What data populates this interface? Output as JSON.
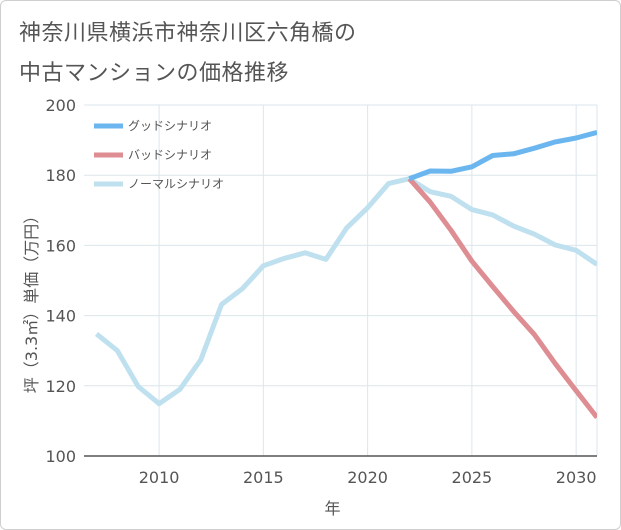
{
  "title_lines": [
    "神奈川県横浜市神奈川区六角橋の",
    "中古マンションの価格推移"
  ],
  "chart_data": {
    "type": "line",
    "title": "神奈川県横浜市神奈川区六角橋の中古マンションの価格推移",
    "xlabel": "年",
    "ylabel": "坪（3.3㎡）単価（万円）",
    "xlim": [
      2006.4,
      2031
    ],
    "ylim": [
      100,
      200
    ],
    "x_ticks": [
      2010,
      2015,
      2020,
      2025,
      2030
    ],
    "y_ticks": [
      100,
      120,
      140,
      160,
      180,
      200
    ],
    "grid": true,
    "legend_position": "top-left",
    "series": [
      {
        "name": "グッドシナリオ",
        "color": "#6bb6ef",
        "x": [
          2022,
          2023,
          2024,
          2025,
          2026,
          2027,
          2028,
          2029,
          2030,
          2031
        ],
        "values": [
          179,
          181.2,
          181.1,
          182.4,
          185.6,
          186.1,
          187.7,
          189.5,
          190.6,
          192.2
        ]
      },
      {
        "name": "バッドシナリオ",
        "color": "#de8d93",
        "x": [
          2022,
          2023,
          2024,
          2025,
          2026,
          2027,
          2028,
          2029,
          2030,
          2031
        ],
        "values": [
          179,
          172.3,
          164.3,
          155.5,
          148.3,
          141.2,
          134.6,
          126.3,
          118.6,
          111
        ]
      },
      {
        "name": "ノーマルシナリオ",
        "color": "#bfe0ee",
        "x": [
          2007,
          2008,
          2009,
          2010,
          2011,
          2012,
          2013,
          2014,
          2015,
          2016,
          2017,
          2018,
          2019,
          2020,
          2021,
          2022,
          2023,
          2024,
          2025,
          2026,
          2027,
          2028,
          2029,
          2030,
          2031
        ],
        "values": [
          134.8,
          130,
          119.8,
          114.9,
          119,
          127.4,
          143.2,
          147.7,
          154.2,
          156.3,
          157.9,
          156,
          165,
          170.7,
          177.6,
          179,
          175.3,
          174,
          170.2,
          168.7,
          165.5,
          163.2,
          160.1,
          158.6,
          154.6
        ]
      }
    ]
  }
}
